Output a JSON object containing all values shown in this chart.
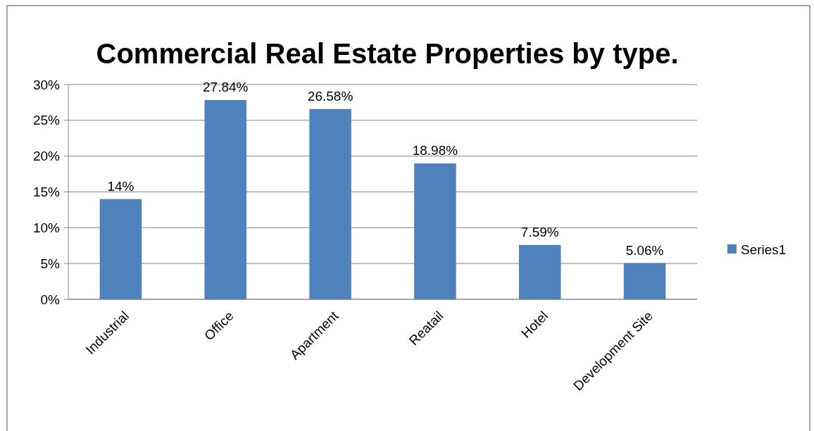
{
  "chart_data": {
    "type": "bar",
    "title": "Commercial Real Estate Properties by type.",
    "categories": [
      "Industrial",
      "Office",
      "Apartment",
      "Reatail",
      "Hotel",
      "Development Site"
    ],
    "series": [
      {
        "name": "Series1",
        "color": "#4f81bd",
        "values": [
          14,
          27.84,
          26.58,
          18.98,
          7.59,
          5.06
        ],
        "value_labels": [
          "14%",
          "27.84%",
          "26.58%",
          "18.98%",
          "7.59%",
          "5.06%"
        ]
      }
    ],
    "ylim": [
      0,
      30
    ],
    "yticks": [
      {
        "value": 0,
        "label": "0%"
      },
      {
        "value": 5,
        "label": "5%"
      },
      {
        "value": 10,
        "label": "10%"
      },
      {
        "value": 15,
        "label": "15%"
      },
      {
        "value": 20,
        "label": "20%"
      },
      {
        "value": 25,
        "label": "25%"
      },
      {
        "value": 30,
        "label": "30%"
      }
    ],
    "grid": "y",
    "legend": "right"
  }
}
